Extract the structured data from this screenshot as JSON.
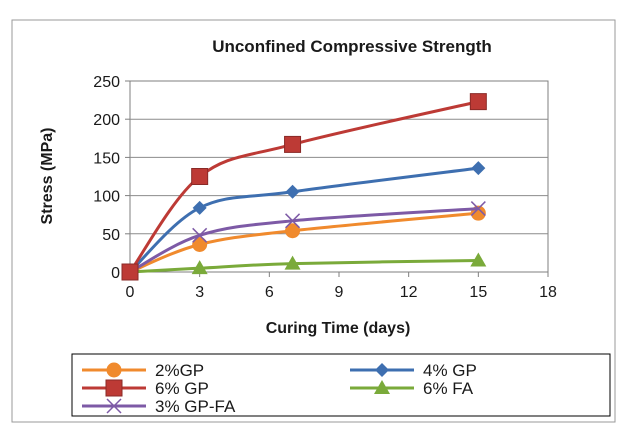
{
  "chart_data": {
    "type": "line",
    "title": "Unconfined Compressive Strength",
    "xlabel": "Curing Time (days)",
    "ylabel": "Stress (MPa)",
    "xlim": [
      0,
      18
    ],
    "ylim": [
      0,
      250
    ],
    "xticks": [
      "0",
      "3",
      "6",
      "9",
      "12",
      "15",
      "18"
    ],
    "yticks": [
      "0",
      "50",
      "100",
      "150",
      "200",
      "250"
    ],
    "grid": true,
    "legend_position": "bottom",
    "x": [
      0,
      3,
      7,
      15
    ],
    "series": [
      {
        "name": "2%GP",
        "values": [
          0,
          36,
          54,
          77
        ],
        "color": "#f08a2d",
        "marker": "circle"
      },
      {
        "name": "4% GP",
        "values": [
          0,
          84,
          105,
          136
        ],
        "color": "#3e6fb0",
        "marker": "diamond"
      },
      {
        "name": "6% GP",
        "values": [
          0,
          125,
          167,
          223
        ],
        "color": "#bd3a35",
        "marker": "square"
      },
      {
        "name": "6% FA",
        "values": [
          0,
          5,
          11,
          15
        ],
        "color": "#7aaa3a",
        "marker": "triangle"
      },
      {
        "name": "3% GP-FA",
        "values": [
          0,
          48,
          67,
          83
        ],
        "color": "#7d5aa6",
        "marker": "x"
      }
    ]
  }
}
